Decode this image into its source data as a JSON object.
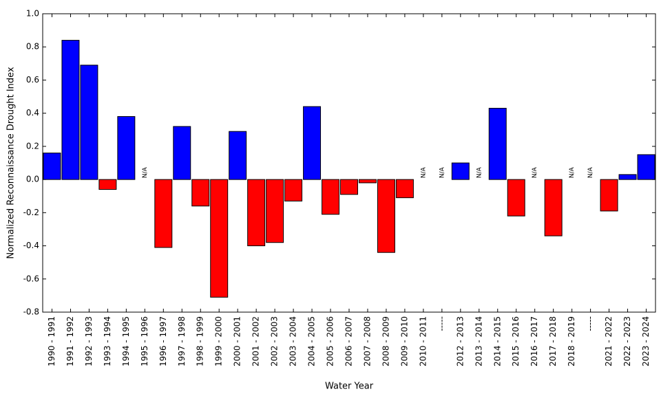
{
  "chart_data": {
    "type": "bar",
    "x_label": "Water Year",
    "y_label": "Normalized Reconnaissance Drought Index",
    "categories": [
      "1990 - 1991",
      "1991 - 1992",
      "1992 - 1993",
      "1993 - 1994",
      "1994 - 1995",
      "1995 - 1996",
      "1996 - 1997",
      "1997 - 1998",
      "1998 - 1999",
      "1999 - 2000",
      "2000 - 2001",
      "2001 - 2002",
      "2002 - 2003",
      "2003 - 2004",
      "2004 - 2005",
      "2005 - 2006",
      "2006 - 2007",
      "2007 - 2008",
      "2008 - 2009",
      "2009 - 2010",
      "2010 - 2011",
      "-----",
      "2012 - 2013",
      "2013 - 2014",
      "2014 - 2015",
      "2015 - 2016",
      "2016 - 2017",
      "2017 - 2018",
      "2018 - 2019",
      "-----",
      "2021 - 2022",
      "2022 - 2023",
      "2023 - 2024"
    ],
    "values": [
      0.16,
      0.84,
      0.69,
      -0.06,
      0.38,
      null,
      -0.41,
      0.32,
      -0.16,
      -0.71,
      0.29,
      -0.4,
      -0.38,
      -0.13,
      0.44,
      -0.21,
      -0.09,
      -0.02,
      -0.44,
      -0.11,
      null,
      null,
      0.1,
      null,
      0.43,
      -0.22,
      null,
      -0.34,
      null,
      null,
      -0.19,
      0.03,
      0.15
    ],
    "value_labels": [
      null,
      null,
      null,
      null,
      null,
      "N/A",
      null,
      null,
      null,
      null,
      null,
      null,
      null,
      null,
      null,
      null,
      null,
      null,
      null,
      null,
      "N/A",
      "N/A",
      null,
      "N/A",
      null,
      null,
      "N/A",
      null,
      "N/A",
      "N/A",
      null,
      null,
      null
    ],
    "positive_color": "#0000ff",
    "negative_color": "#ff0000",
    "ylim": [
      -0.8,
      1.0
    ],
    "yticks": [
      {
        "value": 1.0,
        "label": "1.0"
      },
      0.8,
      0.6,
      0.4,
      0.2,
      {
        "value": 0,
        "label": "0.0"
      },
      -0.2,
      -0.4,
      -0.6,
      -0.8
    ]
  }
}
